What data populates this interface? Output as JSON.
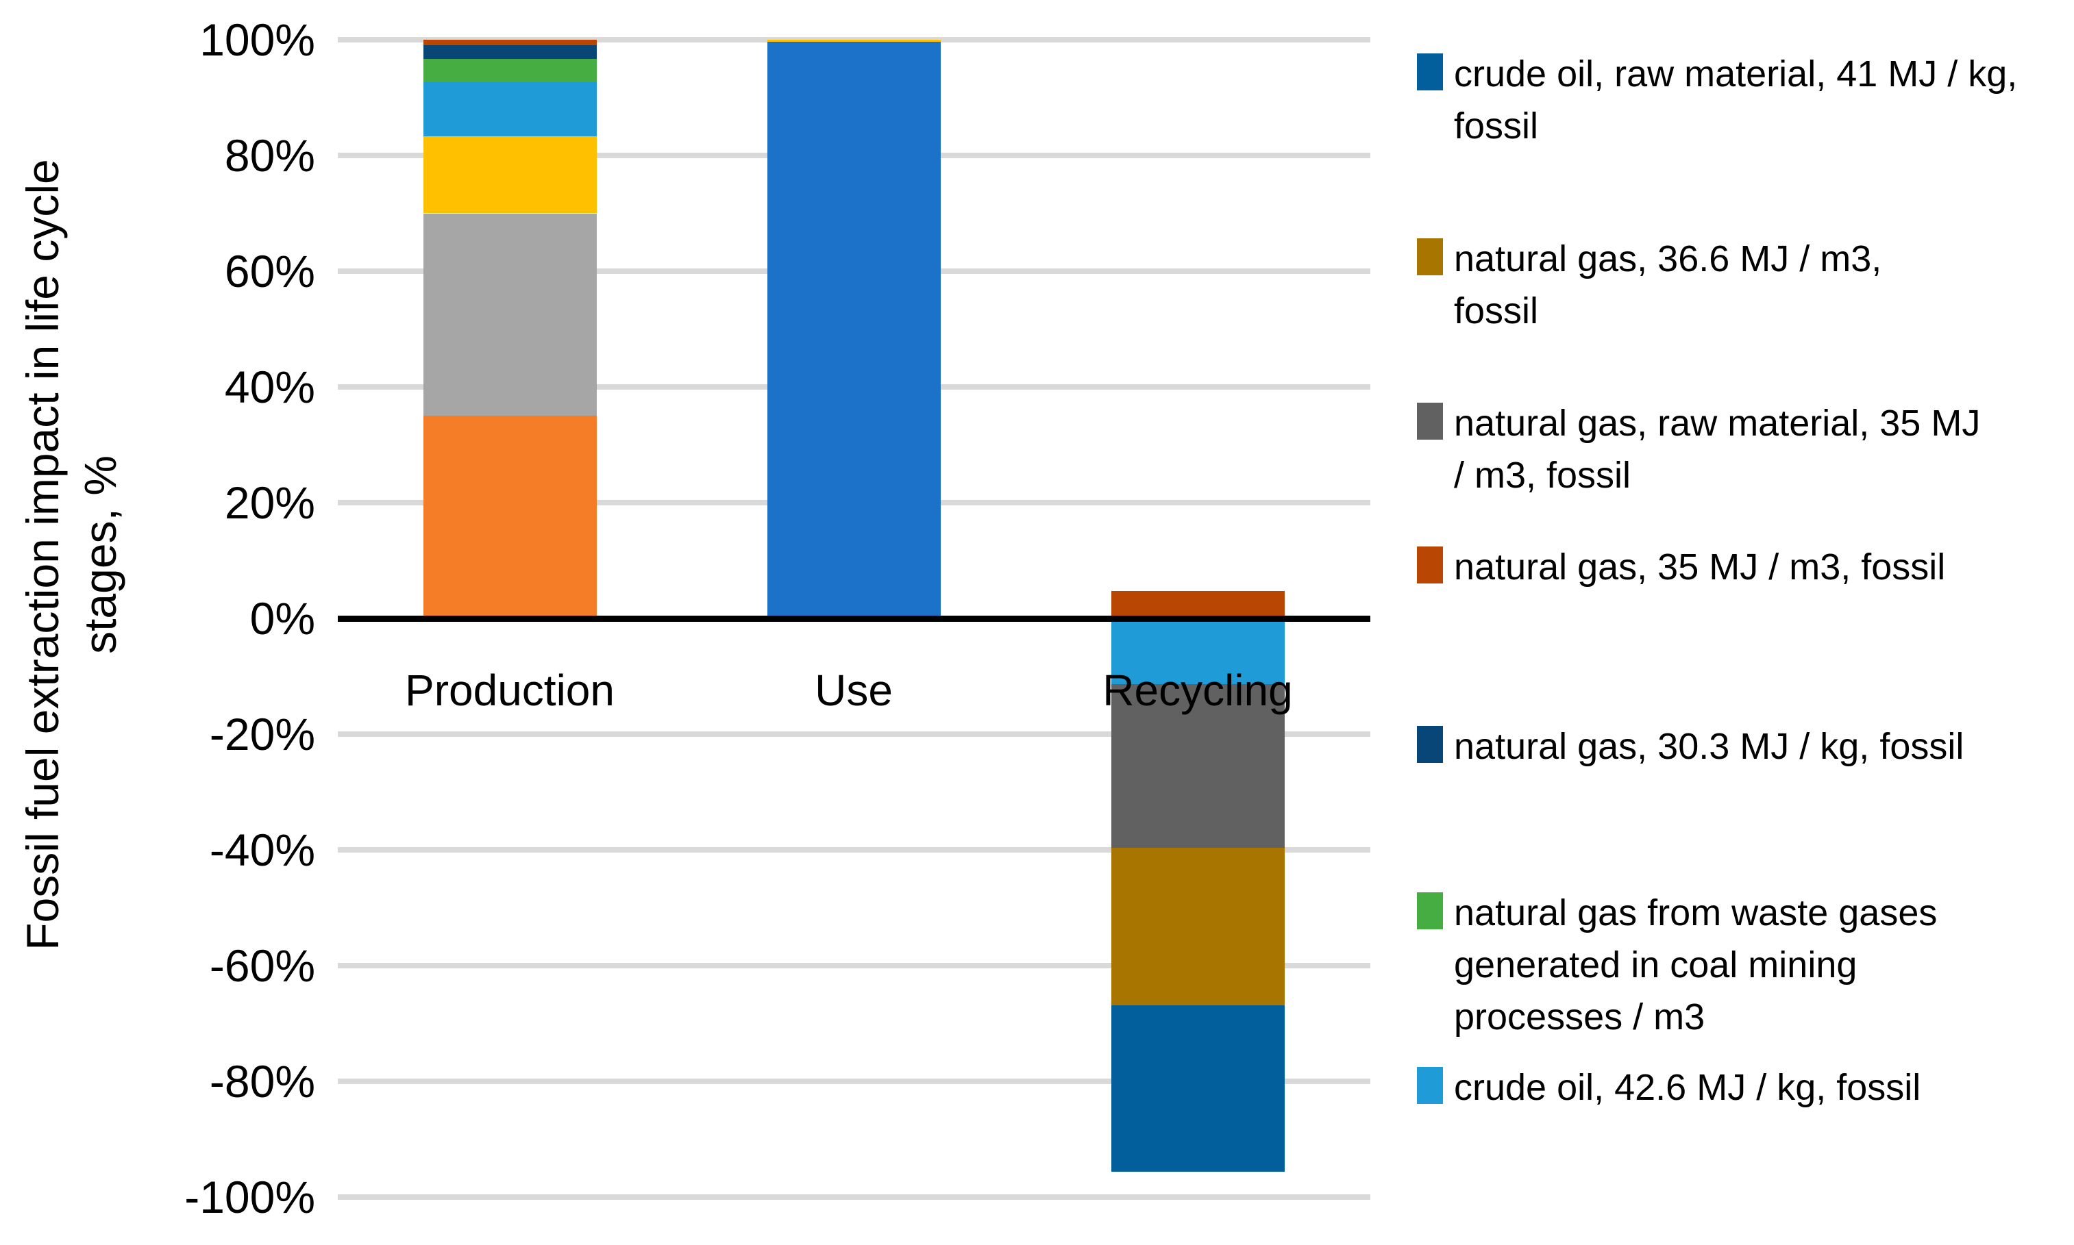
{
  "page": {
    "background": "#FFFFFF"
  },
  "colors": {
    "orange": "#F57D28",
    "light_gray": "#A6A6A6",
    "gold": "#FFC000",
    "sky_blue": "#1F9CD8",
    "green": "#45AD41",
    "navy": "#084678",
    "rust": "#BA4604",
    "bright_blue": "#1B72C8",
    "dark_gray": "#616161",
    "dark_goldenrod": "#A87600",
    "dark_blue": "#025F9B",
    "gridline": "#D9D9D9",
    "axis": "#000000",
    "text": "#000000"
  },
  "chart_data": {
    "type": "bar",
    "subtype": "stacked-column-with-negatives",
    "title": "",
    "xlabel": "",
    "ylabel": "Fossil fuel extraction impact in life cycle stages, %",
    "legend_position": "right",
    "grid": "horizontal gridlines every 20%, light gray; zero line solid black",
    "y_axis": {
      "title_lines": [
        "Fossil fuel extraction impact in life cycle",
        "stages, %"
      ],
      "min": -100,
      "max": 100,
      "step": 20,
      "ticks": [
        {
          "value": 100,
          "label": "100%"
        },
        {
          "value": 80,
          "label": "80%"
        },
        {
          "value": 60,
          "label": "60%"
        },
        {
          "value": 40,
          "label": "40%"
        },
        {
          "value": 20,
          "label": "20%"
        },
        {
          "value": 0,
          "label": "0%"
        },
        {
          "value": -20,
          "label": "-20%"
        },
        {
          "value": -40,
          "label": "-40%"
        },
        {
          "value": -60,
          "label": "-60%"
        },
        {
          "value": -80,
          "label": "-80%"
        },
        {
          "value": -100,
          "label": "-100%"
        }
      ]
    },
    "categories": [
      "Production",
      "Use",
      "Recycling"
    ],
    "stacks": [
      {
        "category": "Production",
        "segments": [
          {
            "legend_label": null,
            "color_key": "orange",
            "value": 35
          },
          {
            "legend_label": null,
            "color_key": "light_gray",
            "value": 35
          },
          {
            "legend_label": null,
            "color_key": "gold",
            "value": 13.3
          },
          {
            "legend_label": "crude oil, 42.6 MJ / kg, fossil",
            "color_key": "sky_blue",
            "value": 9.4
          },
          {
            "legend_label": "natural gas from waste gases generated in coal mining processes / m3",
            "color_key": "green",
            "value": 4
          },
          {
            "legend_label": "natural gas, 30.3 MJ / kg, fossil",
            "color_key": "navy",
            "value": 2.3
          },
          {
            "legend_label": "natural gas, 35 MJ / m3, fossil",
            "color_key": "rust",
            "value": 1
          }
        ]
      },
      {
        "category": "Use",
        "segments": [
          {
            "legend_label": null,
            "color_key": "bright_blue",
            "value": 99.6
          },
          {
            "legend_label": null,
            "color_key": "gold",
            "value": 0.4
          }
        ]
      },
      {
        "category": "Recycling",
        "segments": [
          {
            "legend_label": "natural gas, 35 MJ / m3, fossil",
            "color_key": "rust",
            "value": 4.7
          },
          {
            "legend_label": "crude oil, 42.6 MJ / kg, fossil",
            "color_key": "sky_blue",
            "value": -11.4
          },
          {
            "legend_label": "natural gas, raw material, 35 MJ / m3, fossil",
            "color_key": "dark_gray",
            "value": -28.2
          },
          {
            "legend_label": "natural gas, 36.6 MJ / m3, fossil",
            "color_key": "dark_goldenrod",
            "value": -27.3
          },
          {
            "legend_label": "crude oil, raw material, 41 MJ / kg, fossil",
            "color_key": "dark_blue",
            "value": -28.7
          }
        ]
      }
    ]
  },
  "legend": {
    "items": [
      {
        "label": "crude oil, raw material, 41 MJ / kg, fossil",
        "color_key": "dark_blue"
      },
      {
        "label": "natural gas, 36.6 MJ / m3, fossil",
        "color_key": "dark_goldenrod"
      },
      {
        "label": "natural gas, raw material, 35 MJ / m3, fossil",
        "color_key": "dark_gray"
      },
      {
        "label": "natural gas, 35 MJ / m3, fossil",
        "color_key": "rust"
      },
      {
        "label": "natural gas, 30.3 MJ / kg, fossil",
        "color_key": "navy"
      },
      {
        "label": "natural gas from waste gases generated in coal mining processes / m3",
        "color_key": "green"
      },
      {
        "label": "crude oil, 42.6 MJ / kg, fossil",
        "color_key": "sky_blue"
      }
    ]
  }
}
